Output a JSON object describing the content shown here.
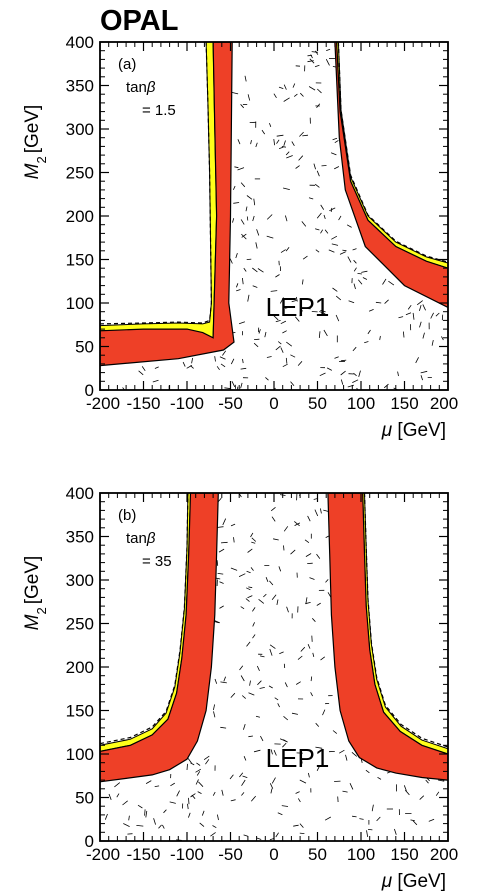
{
  "experiment_label": "OPAL",
  "chart_data": [
    {
      "type": "area",
      "panel_label": "(a)",
      "param_label": "tan",
      "param_symbol": "β",
      "param_value": "= 1.5",
      "region_label": "LEP1",
      "xlabel": "μ",
      "xunit": "[GeV]",
      "ylabel_symbol": "M",
      "ylabel_subscript": "2",
      "yunit": "[GeV]",
      "xlim": [
        -200,
        200
      ],
      "ylim": [
        0,
        400
      ],
      "xticks": [
        -200,
        -150,
        -100,
        -50,
        0,
        50,
        100,
        150,
        200
      ],
      "xtick_labels": [
        "-200",
        "-150",
        "-100",
        "-50",
        "0",
        "50",
        "100",
        "150",
        "200"
      ],
      "yticks": [
        0,
        50,
        100,
        150,
        200,
        250,
        300,
        350,
        400
      ],
      "ytick_labels": [
        "0",
        "50",
        "100",
        "150",
        "200",
        "250",
        "300",
        "350",
        "400"
      ],
      "colors": {
        "excluded": "#ee4027",
        "marginal": "#ffff1a",
        "lep1": "#ffffff"
      },
      "regions": {
        "lep1_excluded": [
          [
            -200,
            0
          ],
          [
            -200,
            28
          ],
          [
            -150,
            31
          ],
          [
            -110,
            34
          ],
          [
            -80,
            38
          ],
          [
            -58,
            44
          ],
          [
            -46,
            50
          ],
          [
            -50,
            125
          ],
          [
            -48,
            200
          ],
          [
            -46,
            300
          ],
          [
            -44,
            400
          ],
          [
            70,
            400
          ],
          [
            72,
            350
          ],
          [
            75,
            290
          ],
          [
            82,
            230
          ],
          [
            92,
            190
          ],
          [
            105,
            165
          ],
          [
            125,
            140
          ],
          [
            150,
            120
          ],
          [
            175,
            105
          ],
          [
            200,
            95
          ],
          [
            200,
            0
          ]
        ],
        "red_left": [
          [
            -200,
            28
          ],
          [
            -200,
            68
          ],
          [
            -150,
            70
          ],
          [
            -100,
            70
          ],
          [
            -82,
            66
          ],
          [
            -70,
            60
          ],
          [
            -66,
            200
          ],
          [
            -68,
            300
          ],
          [
            -70,
            400
          ],
          [
            -48,
            400
          ],
          [
            -50,
            200
          ],
          [
            -52,
            100
          ],
          [
            -46,
            55
          ],
          [
            -58,
            46
          ],
          [
            -110,
            36
          ],
          [
            -200,
            28
          ]
        ],
        "red_right": [
          [
            72,
            400
          ],
          [
            76,
            320
          ],
          [
            88,
            240
          ],
          [
            108,
            195
          ],
          [
            140,
            165
          ],
          [
            175,
            148
          ],
          [
            200,
            140
          ],
          [
            200,
            95
          ],
          [
            150,
            120
          ],
          [
            105,
            165
          ],
          [
            82,
            230
          ],
          [
            75,
            290
          ],
          [
            70,
            400
          ]
        ],
        "yellow_left": [
          [
            -200,
            68
          ],
          [
            -200,
            74
          ],
          [
            -150,
            76
          ],
          [
            -110,
            77
          ],
          [
            -82,
            76
          ],
          [
            -74,
            78
          ],
          [
            -72,
            100
          ],
          [
            -74,
            250
          ],
          [
            -76,
            330
          ],
          [
            -78,
            400
          ],
          [
            -70,
            400
          ],
          [
            -68,
            300
          ],
          [
            -66,
            200
          ],
          [
            -70,
            60
          ],
          [
            -100,
            70
          ],
          [
            -200,
            68
          ]
        ],
        "yellow_right": [
          [
            72,
            400
          ],
          [
            76,
            320
          ],
          [
            88,
            240
          ],
          [
            108,
            195
          ],
          [
            140,
            165
          ],
          [
            175,
            148
          ],
          [
            200,
            140
          ],
          [
            200,
            146
          ],
          [
            175,
            153
          ],
          [
            140,
            170
          ],
          [
            108,
            200
          ],
          [
            88,
            245
          ],
          [
            77,
            322
          ],
          [
            74,
            400
          ]
        ]
      },
      "dashed_contours": [
        [
          [
            -200,
            76
          ],
          [
            -150,
            77
          ],
          [
            -110,
            78
          ],
          [
            -82,
            77
          ],
          [
            -74,
            80
          ],
          [
            -72,
            100
          ],
          [
            -74,
            250
          ],
          [
            -76,
            330
          ],
          [
            -78,
            400
          ]
        ],
        [
          [
            74,
            400
          ],
          [
            77,
            322
          ],
          [
            88,
            247
          ],
          [
            108,
            201
          ],
          [
            140,
            171
          ],
          [
            175,
            154
          ],
          [
            200,
            147
          ]
        ]
      ]
    },
    {
      "type": "area",
      "panel_label": "(b)",
      "param_label": "tan",
      "param_symbol": "β",
      "param_value": "= 35",
      "region_label": "LEP1",
      "xlabel": "μ",
      "xunit": "[GeV]",
      "ylabel_symbol": "M",
      "ylabel_subscript": "2",
      "yunit": "[GeV]",
      "xlim": [
        -200,
        200
      ],
      "ylim": [
        0,
        400
      ],
      "xticks": [
        -200,
        -150,
        -100,
        -50,
        0,
        50,
        100,
        150,
        200
      ],
      "xtick_labels": [
        "-200",
        "-150",
        "-100",
        "-50",
        "0",
        "50",
        "100",
        "150",
        "200"
      ],
      "yticks": [
        0,
        50,
        100,
        150,
        200,
        250,
        300,
        350,
        400
      ],
      "ytick_labels": [
        "0",
        "50",
        "100",
        "150",
        "200",
        "250",
        "300",
        "350",
        "400"
      ],
      "colors": {
        "excluded": "#ee4027",
        "marginal": "#ffff1a",
        "lep1": "#ffffff"
      },
      "regions": {
        "lep1_excluded": [
          [
            -200,
            0
          ],
          [
            -200,
            68
          ],
          [
            -170,
            72
          ],
          [
            -140,
            76
          ],
          [
            -120,
            82
          ],
          [
            -100,
            94
          ],
          [
            -88,
            115
          ],
          [
            -78,
            150
          ],
          [
            -72,
            200
          ],
          [
            -68,
            260
          ],
          [
            -66,
            330
          ],
          [
            -64,
            400
          ],
          [
            62,
            400
          ],
          [
            64,
            330
          ],
          [
            66,
            260
          ],
          [
            70,
            200
          ],
          [
            76,
            150
          ],
          [
            86,
            115
          ],
          [
            98,
            96
          ],
          [
            118,
            84
          ],
          [
            140,
            78
          ],
          [
            170,
            73
          ],
          [
            200,
            70
          ],
          [
            200,
            0
          ]
        ],
        "red_left": [
          [
            -200,
            68
          ],
          [
            -200,
            103
          ],
          [
            -165,
            110
          ],
          [
            -140,
            122
          ],
          [
            -122,
            140
          ],
          [
            -112,
            170
          ],
          [
            -106,
            210
          ],
          [
            -101,
            260
          ],
          [
            -98,
            330
          ],
          [
            -96,
            400
          ],
          [
            -64,
            400
          ],
          [
            -66,
            330
          ],
          [
            -68,
            260
          ],
          [
            -72,
            200
          ],
          [
            -78,
            150
          ],
          [
            -88,
            115
          ],
          [
            -100,
            94
          ],
          [
            -120,
            82
          ],
          [
            -140,
            76
          ],
          [
            -170,
            72
          ],
          [
            -200,
            68
          ]
        ],
        "red_right": [
          [
            62,
            400
          ],
          [
            64,
            330
          ],
          [
            66,
            260
          ],
          [
            70,
            200
          ],
          [
            76,
            150
          ],
          [
            86,
            115
          ],
          [
            98,
            96
          ],
          [
            118,
            84
          ],
          [
            140,
            78
          ],
          [
            170,
            73
          ],
          [
            200,
            70
          ],
          [
            200,
            100
          ],
          [
            170,
            110
          ],
          [
            145,
            126
          ],
          [
            126,
            148
          ],
          [
            116,
            180
          ],
          [
            110,
            220
          ],
          [
            106,
            270
          ],
          [
            104,
            330
          ],
          [
            102,
            400
          ]
        ],
        "yellow_left": [
          [
            -200,
            103
          ],
          [
            -200,
            110
          ],
          [
            -165,
            117
          ],
          [
            -140,
            129
          ],
          [
            -124,
            147
          ],
          [
            -114,
            177
          ],
          [
            -108,
            217
          ],
          [
            -103,
            267
          ],
          [
            -100,
            337
          ],
          [
            -99,
            400
          ],
          [
            -96,
            400
          ],
          [
            -98,
            330
          ],
          [
            -101,
            260
          ],
          [
            -106,
            210
          ],
          [
            -112,
            170
          ],
          [
            -122,
            140
          ],
          [
            -140,
            122
          ],
          [
            -165,
            110
          ],
          [
            -200,
            103
          ]
        ],
        "yellow_right": [
          [
            102,
            400
          ],
          [
            104,
            330
          ],
          [
            106,
            270
          ],
          [
            110,
            220
          ],
          [
            116,
            180
          ],
          [
            126,
            148
          ],
          [
            145,
            126
          ],
          [
            170,
            110
          ],
          [
            200,
            100
          ],
          [
            200,
            106
          ],
          [
            170,
            116
          ],
          [
            146,
            132
          ],
          [
            128,
            154
          ],
          [
            118,
            186
          ],
          [
            112,
            226
          ],
          [
            108,
            276
          ],
          [
            106,
            336
          ],
          [
            104,
            400
          ]
        ]
      },
      "dashed_contours": [
        [
          [
            -200,
            112
          ],
          [
            -165,
            119
          ],
          [
            -140,
            131
          ],
          [
            -124,
            149
          ],
          [
            -114,
            179
          ],
          [
            -108,
            219
          ],
          [
            -103,
            269
          ],
          [
            -100,
            339
          ],
          [
            -99,
            400
          ]
        ],
        [
          [
            104,
            400
          ],
          [
            106,
            338
          ],
          [
            108,
            278
          ],
          [
            112,
            228
          ],
          [
            118,
            188
          ],
          [
            128,
            156
          ],
          [
            146,
            134
          ],
          [
            170,
            118
          ],
          [
            200,
            108
          ]
        ]
      ]
    }
  ]
}
